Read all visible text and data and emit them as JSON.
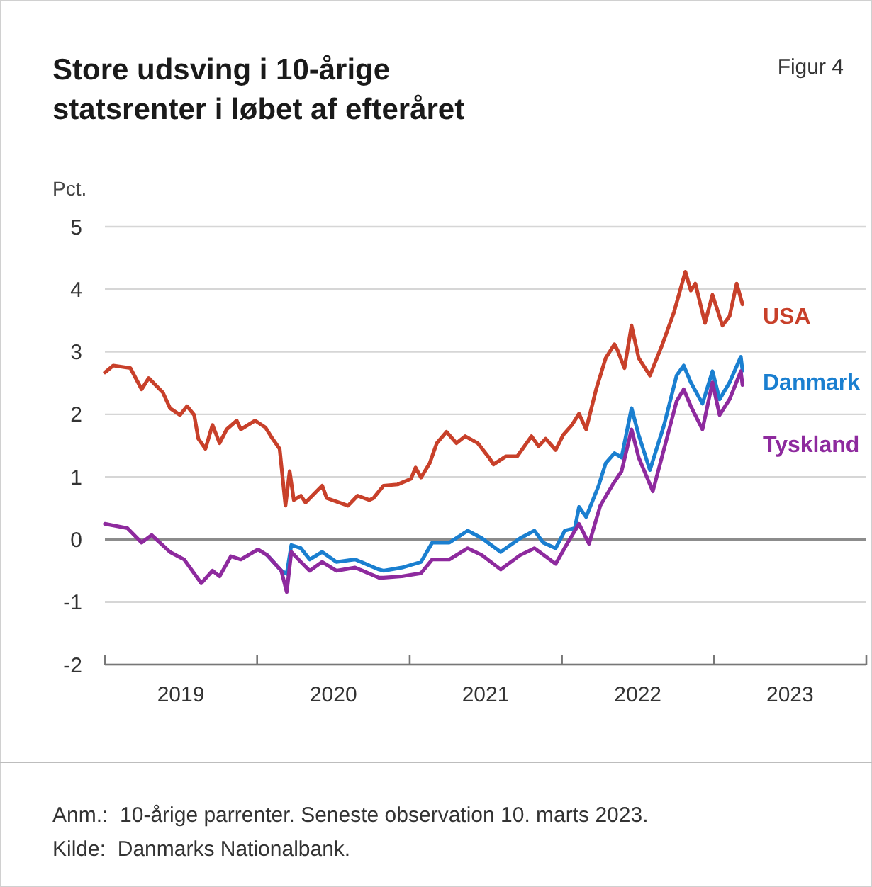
{
  "chart_data": {
    "type": "line",
    "title": "Store udsving i 10-årige statsrenter i løbet af efteråret",
    "subtitle": "Figur 4",
    "ylabel": "Pct.",
    "annotations": [
      "Anm.:  10-årige parrenter. Seneste observation 10. marts 2023.",
      "Kilde:  Danmarks Nationalbank."
    ],
    "xlim": [
      "2019-01-01",
      "2024-01-01"
    ],
    "xticks": [
      {
        "value": "2019-01-01",
        "label": null
      },
      {
        "value": "2019-07-02",
        "label": "2019"
      },
      {
        "value": "2020-01-01",
        "label": null
      },
      {
        "value": "2020-07-02",
        "label": "2020"
      },
      {
        "value": "2021-01-01",
        "label": null
      },
      {
        "value": "2021-07-02",
        "label": "2021"
      },
      {
        "value": "2022-01-01",
        "label": null
      },
      {
        "value": "2022-07-02",
        "label": "2022"
      },
      {
        "value": "2023-01-01",
        "label": null
      },
      {
        "value": "2023-07-02",
        "label": "2023"
      },
      {
        "value": "2024-01-01",
        "label": null
      }
    ],
    "ylim": [
      -2,
      5
    ],
    "yticks": [
      -2,
      -1,
      0,
      1,
      2,
      3,
      4,
      5
    ],
    "grid": "y",
    "legend": false,
    "line_style": "solid",
    "marker": "none",
    "ref_lines": [
      {
        "axis": "y",
        "value": 0,
        "color": "#8c8c8c"
      }
    ],
    "series": [
      {
        "name": "USA",
        "color": "#c8402a",
        "x": [
          "2019-01-01",
          "2019-01-21",
          "2019-03-03",
          "2019-03-30",
          "2019-04-16",
          "2019-05-20",
          "2019-06-06",
          "2019-06-30",
          "2019-07-17",
          "2019-08-03",
          "2019-08-13",
          "2019-08-30",
          "2019-09-16",
          "2019-10-03",
          "2019-10-20",
          "2019-11-13",
          "2019-11-23",
          "2019-12-27",
          "2020-01-21",
          "2020-02-07",
          "2020-02-24",
          "2020-03-09",
          "2020-03-19",
          "2020-03-29",
          "2020-04-15",
          "2020-04-26",
          "2020-06-05",
          "2020-06-16",
          "2020-08-06",
          "2020-08-29",
          "2020-09-26",
          "2020-10-06",
          "2020-10-30",
          "2020-12-03",
          "2021-01-04",
          "2021-01-15",
          "2021-01-28",
          "2021-02-18",
          "2021-03-07",
          "2021-03-30",
          "2021-04-23",
          "2021-05-14",
          "2021-06-13",
          "2021-07-10",
          "2021-07-21",
          "2021-08-20",
          "2021-09-16",
          "2021-10-20",
          "2021-11-06",
          "2021-11-23",
          "2021-12-17",
          "2022-01-04",
          "2022-01-25",
          "2022-02-11",
          "2022-02-28",
          "2022-03-24",
          "2022-04-16",
          "2022-05-07",
          "2022-05-14",
          "2022-05-31",
          "2022-06-17",
          "2022-07-04",
          "2022-07-31",
          "2022-08-30",
          "2022-09-27",
          "2022-10-24",
          "2022-11-06",
          "2022-11-17",
          "2022-12-10",
          "2022-12-28",
          "2023-01-21",
          "2023-02-07",
          "2023-02-24",
          "2023-03-10"
        ],
        "values": [
          2.67,
          2.78,
          2.74,
          2.4,
          2.58,
          2.35,
          2.1,
          1.99,
          2.13,
          1.99,
          1.61,
          1.45,
          1.83,
          1.54,
          1.76,
          1.9,
          1.76,
          1.9,
          1.79,
          1.61,
          1.45,
          0.54,
          1.09,
          0.63,
          0.7,
          0.59,
          0.86,
          0.66,
          0.54,
          0.7,
          0.63,
          0.66,
          0.86,
          0.88,
          0.97,
          1.15,
          0.99,
          1.22,
          1.54,
          1.72,
          1.54,
          1.65,
          1.54,
          1.31,
          1.2,
          1.33,
          1.33,
          1.65,
          1.49,
          1.61,
          1.43,
          1.67,
          1.83,
          2.01,
          1.76,
          2.4,
          2.9,
          3.12,
          3.03,
          2.74,
          3.42,
          2.9,
          2.62,
          3.12,
          3.64,
          4.28,
          3.98,
          4.09,
          3.46,
          3.91,
          3.42,
          3.57,
          4.09,
          3.76
        ]
      },
      {
        "name": "Danmark",
        "color": "#1a7fd0",
        "x": [
          "2020-01-25",
          "2020-02-28",
          "2020-03-12",
          "2020-03-23",
          "2020-04-15",
          "2020-05-06",
          "2020-06-05",
          "2020-07-09",
          "2020-08-23",
          "2020-10-19",
          "2020-10-30",
          "2020-12-13",
          "2021-01-28",
          "2021-02-24",
          "2021-04-06",
          "2021-05-20",
          "2021-06-23",
          "2021-08-07",
          "2021-09-23",
          "2021-10-27",
          "2021-11-17",
          "2021-12-17",
          "2022-01-08",
          "2022-02-01",
          "2022-02-11",
          "2022-02-28",
          "2022-03-30",
          "2022-04-16",
          "2022-05-07",
          "2022-05-24",
          "2022-06-17",
          "2022-07-04",
          "2022-07-31",
          "2022-09-03",
          "2022-10-03",
          "2022-10-20",
          "2022-11-06",
          "2022-12-04",
          "2022-12-28",
          "2023-01-14",
          "2023-02-07",
          "2023-03-06",
          "2023-03-10"
        ],
        "values": [
          -0.25,
          -0.5,
          -0.55,
          -0.09,
          -0.14,
          -0.32,
          -0.2,
          -0.36,
          -0.32,
          -0.48,
          -0.5,
          -0.45,
          -0.36,
          -0.05,
          -0.05,
          0.14,
          0.02,
          -0.2,
          0.02,
          0.14,
          -0.05,
          -0.14,
          0.14,
          0.18,
          0.52,
          0.36,
          0.86,
          1.22,
          1.38,
          1.31,
          2.1,
          1.67,
          1.11,
          1.83,
          2.62,
          2.78,
          2.51,
          2.17,
          2.69,
          2.24,
          2.51,
          2.92,
          2.7
        ]
      },
      {
        "name": "Tyskland",
        "color": "#8e2a9e",
        "x": [
          "2019-01-01",
          "2019-02-24",
          "2019-03-30",
          "2019-04-23",
          "2019-06-06",
          "2019-07-10",
          "2019-08-20",
          "2019-09-16",
          "2019-10-03",
          "2019-10-30",
          "2019-11-23",
          "2020-01-03",
          "2020-01-25",
          "2020-02-28",
          "2020-03-12",
          "2020-03-23",
          "2020-04-15",
          "2020-05-06",
          "2020-06-05",
          "2020-07-09",
          "2020-08-23",
          "2020-10-19",
          "2020-10-30",
          "2020-12-13",
          "2021-01-28",
          "2021-02-24",
          "2021-04-06",
          "2021-05-20",
          "2021-06-23",
          "2021-08-07",
          "2021-09-23",
          "2021-10-27",
          "2021-12-17",
          "2022-01-15",
          "2022-02-11",
          "2022-03-07",
          "2022-04-03",
          "2022-05-03",
          "2022-05-24",
          "2022-06-17",
          "2022-07-04",
          "2022-08-07",
          "2022-09-03",
          "2022-10-03",
          "2022-10-20",
          "2022-11-06",
          "2022-12-04",
          "2022-12-28",
          "2023-01-14",
          "2023-02-07",
          "2023-03-06",
          "2023-03-10"
        ],
        "values": [
          0.25,
          0.18,
          -0.05,
          0.07,
          -0.2,
          -0.32,
          -0.7,
          -0.5,
          -0.59,
          -0.27,
          -0.32,
          -0.16,
          -0.25,
          -0.5,
          -0.84,
          -0.2,
          -0.36,
          -0.5,
          -0.36,
          -0.5,
          -0.45,
          -0.61,
          -0.61,
          -0.59,
          -0.54,
          -0.32,
          -0.32,
          -0.14,
          -0.25,
          -0.48,
          -0.25,
          -0.14,
          -0.39,
          -0.05,
          0.25,
          -0.07,
          0.54,
          0.88,
          1.09,
          1.76,
          1.31,
          0.77,
          1.45,
          2.21,
          2.4,
          2.13,
          1.76,
          2.51,
          1.99,
          2.24,
          2.69,
          2.47
        ]
      }
    ]
  }
}
